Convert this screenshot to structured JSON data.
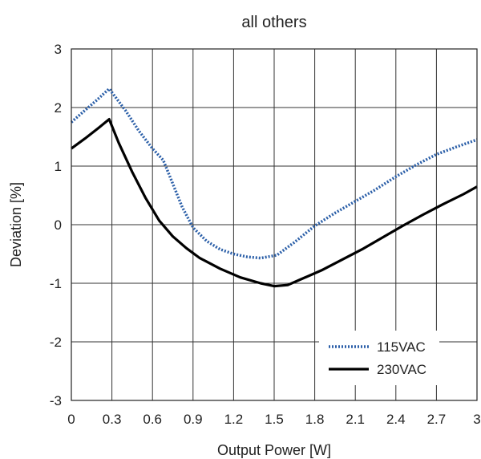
{
  "chart_data": {
    "type": "line",
    "title": "all others",
    "xlabel": "Output Power [W]",
    "ylabel": "Deviation [%]",
    "xlim": [
      0,
      3
    ],
    "ylim": [
      -3,
      3
    ],
    "xticks": [
      "0",
      "0.3",
      "0.6",
      "0.9",
      "1.2",
      "1.5",
      "1.8",
      "2.1",
      "2.4",
      "2.7",
      "3"
    ],
    "yticks": [
      "3",
      "2",
      "1",
      "0",
      "-1",
      "-2",
      "-3"
    ],
    "grid": true,
    "legend_position": "bottom-right",
    "series": [
      {
        "name": "115VAC",
        "style": "dotted",
        "color": "#2b5fa8",
        "points": [
          [
            0,
            1.75
          ],
          [
            0.1,
            1.95
          ],
          [
            0.2,
            2.15
          ],
          [
            0.28,
            2.32
          ],
          [
            0.4,
            1.95
          ],
          [
            0.5,
            1.6
          ],
          [
            0.6,
            1.3
          ],
          [
            0.68,
            1.1
          ],
          [
            0.75,
            0.7
          ],
          [
            0.82,
            0.3
          ],
          [
            0.9,
            -0.05
          ],
          [
            1.0,
            -0.28
          ],
          [
            1.1,
            -0.42
          ],
          [
            1.2,
            -0.5
          ],
          [
            1.3,
            -0.55
          ],
          [
            1.4,
            -0.57
          ],
          [
            1.52,
            -0.52
          ],
          [
            1.65,
            -0.3
          ],
          [
            1.8,
            -0.02
          ],
          [
            1.95,
            0.2
          ],
          [
            2.1,
            0.4
          ],
          [
            2.25,
            0.6
          ],
          [
            2.4,
            0.82
          ],
          [
            2.55,
            1.02
          ],
          [
            2.7,
            1.2
          ],
          [
            2.85,
            1.33
          ],
          [
            3.0,
            1.45
          ]
        ]
      },
      {
        "name": "230VAC",
        "style": "solid",
        "color": "#000000",
        "points": [
          [
            0,
            1.3
          ],
          [
            0.1,
            1.47
          ],
          [
            0.2,
            1.65
          ],
          [
            0.28,
            1.8
          ],
          [
            0.35,
            1.4
          ],
          [
            0.45,
            0.9
          ],
          [
            0.55,
            0.45
          ],
          [
            0.65,
            0.07
          ],
          [
            0.75,
            -0.2
          ],
          [
            0.85,
            -0.4
          ],
          [
            0.95,
            -0.57
          ],
          [
            1.1,
            -0.75
          ],
          [
            1.25,
            -0.9
          ],
          [
            1.4,
            -1.0
          ],
          [
            1.5,
            -1.05
          ],
          [
            1.6,
            -1.03
          ],
          [
            1.7,
            -0.93
          ],
          [
            1.85,
            -0.78
          ],
          [
            2.0,
            -0.6
          ],
          [
            2.15,
            -0.42
          ],
          [
            2.3,
            -0.22
          ],
          [
            2.45,
            -0.02
          ],
          [
            2.6,
            0.17
          ],
          [
            2.75,
            0.35
          ],
          [
            2.9,
            0.52
          ],
          [
            3.0,
            0.65
          ]
        ]
      }
    ]
  }
}
